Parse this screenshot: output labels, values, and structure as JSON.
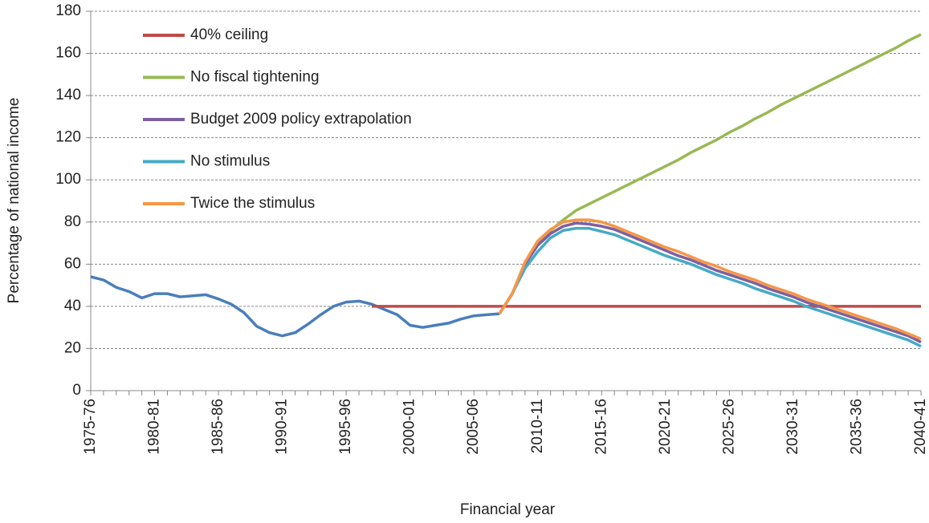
{
  "chart_data": {
    "type": "line",
    "y_label": "Percentage of national income",
    "x_label": "Financial year",
    "categories": [
      "1975-76",
      null,
      null,
      null,
      null,
      "1980-81",
      null,
      null,
      null,
      null,
      "1985-86",
      null,
      null,
      null,
      null,
      "1990-91",
      null,
      null,
      null,
      null,
      "1995-96",
      null,
      null,
      null,
      null,
      "2000-01",
      null,
      null,
      null,
      null,
      "2005-06",
      null,
      null,
      null,
      null,
      "2010-11",
      null,
      null,
      null,
      null,
      "2015-16",
      null,
      null,
      null,
      null,
      "2020-21",
      null,
      null,
      null,
      null,
      "2025-26",
      null,
      null,
      null,
      null,
      "2030-31",
      null,
      null,
      null,
      null,
      "2035-36",
      null,
      null,
      null,
      null,
      "2040-41"
    ],
    "series": [
      {
        "color": "#4a7ebb",
        "values": [
          54,
          52.5,
          49,
          47,
          44,
          46,
          46,
          44.5,
          45,
          45.5,
          43.5,
          41,
          37,
          30.5,
          27.5,
          26,
          27.5,
          31.5,
          36,
          40,
          42,
          42.5,
          41,
          38.5,
          36,
          31,
          30,
          31,
          32,
          34,
          35.5,
          36,
          36.5,
          null,
          null,
          null,
          null,
          null,
          null,
          null,
          null,
          null,
          null,
          null,
          null,
          null,
          null,
          null,
          null,
          null,
          null,
          null,
          null,
          null,
          null,
          null,
          null,
          null,
          null,
          null,
          null,
          null,
          null,
          null,
          null,
          null
        ]
      },
      {
        "name": "40% ceiling",
        "color": "#be4b48",
        "values": [
          null,
          null,
          null,
          null,
          null,
          null,
          null,
          null,
          null,
          null,
          null,
          null,
          null,
          null,
          null,
          null,
          null,
          null,
          null,
          null,
          null,
          null,
          40,
          40,
          40,
          40,
          40,
          40,
          40,
          40,
          40,
          40,
          40,
          40,
          40,
          40,
          40,
          40,
          40,
          40,
          40,
          40,
          40,
          40,
          40,
          40,
          40,
          40,
          40,
          40,
          40,
          40,
          40,
          40,
          40,
          40,
          40,
          40,
          40,
          40,
          40,
          40,
          40,
          40,
          40,
          40
        ]
      },
      {
        "name": "No fiscal tightening",
        "color": "#98b954",
        "values": [
          null,
          null,
          null,
          null,
          null,
          null,
          null,
          null,
          null,
          null,
          null,
          null,
          null,
          null,
          null,
          null,
          null,
          null,
          null,
          null,
          null,
          null,
          null,
          null,
          null,
          null,
          null,
          null,
          null,
          null,
          null,
          null,
          36.5,
          46,
          60,
          70,
          76,
          81,
          85.5,
          88.5,
          91.5,
          94.5,
          97.5,
          100.5,
          103.5,
          106.5,
          109.5,
          113,
          116,
          119,
          122.5,
          125.5,
          129,
          132,
          135.5,
          138.5,
          141.5,
          144.5,
          147.5,
          150.5,
          153.5,
          156.5,
          159.5,
          162.5,
          166,
          169
        ]
      },
      {
        "name": "Budget 2009 policy extrapolation",
        "color": "#7d60a0",
        "values": [
          null,
          null,
          null,
          null,
          null,
          null,
          null,
          null,
          null,
          null,
          null,
          null,
          null,
          null,
          null,
          null,
          null,
          null,
          null,
          null,
          null,
          null,
          null,
          null,
          null,
          null,
          null,
          null,
          null,
          null,
          null,
          null,
          36.5,
          46,
          60,
          69,
          74.5,
          78,
          79.5,
          79,
          78,
          76.5,
          74,
          71.5,
          69,
          66.5,
          64,
          62,
          59.5,
          57,
          55,
          53,
          51,
          48.5,
          46.5,
          44.5,
          42,
          40,
          38,
          36,
          34,
          32,
          30,
          28,
          26,
          23
        ]
      },
      {
        "name": "No stimulus",
        "color": "#46aac5",
        "values": [
          null,
          null,
          null,
          null,
          null,
          null,
          null,
          null,
          null,
          null,
          null,
          null,
          null,
          null,
          null,
          null,
          null,
          null,
          null,
          null,
          null,
          null,
          null,
          null,
          null,
          null,
          null,
          null,
          null,
          null,
          null,
          null,
          36.5,
          46,
          58,
          66,
          72.5,
          76,
          77,
          77,
          75.5,
          74,
          71.5,
          69,
          66.5,
          64,
          62,
          60,
          57.5,
          55,
          53,
          51,
          48.5,
          46.5,
          44.5,
          42.5,
          40,
          38,
          36,
          34,
          32,
          30,
          28,
          26,
          24,
          21
        ]
      },
      {
        "name": "Twice the stimulus",
        "color": "#f79646",
        "values": [
          null,
          null,
          null,
          null,
          null,
          null,
          null,
          null,
          null,
          null,
          null,
          null,
          null,
          null,
          null,
          null,
          null,
          null,
          null,
          null,
          null,
          null,
          null,
          null,
          null,
          null,
          null,
          null,
          null,
          null,
          null,
          null,
          36.5,
          46,
          61,
          71,
          76.5,
          80,
          81,
          81,
          80,
          78,
          75.5,
          73,
          70.5,
          68,
          66,
          63.5,
          61,
          59,
          56.5,
          54.5,
          52.5,
          50,
          48,
          46,
          43.5,
          41.5,
          39.5,
          37.5,
          35.5,
          33.5,
          31.5,
          29.5,
          27,
          24.5
        ]
      }
    ],
    "ylim": [
      0,
      180
    ],
    "yticks": [
      0,
      20,
      40,
      60,
      80,
      100,
      120,
      140,
      160,
      180
    ],
    "grid": true,
    "legend": "upper left"
  }
}
